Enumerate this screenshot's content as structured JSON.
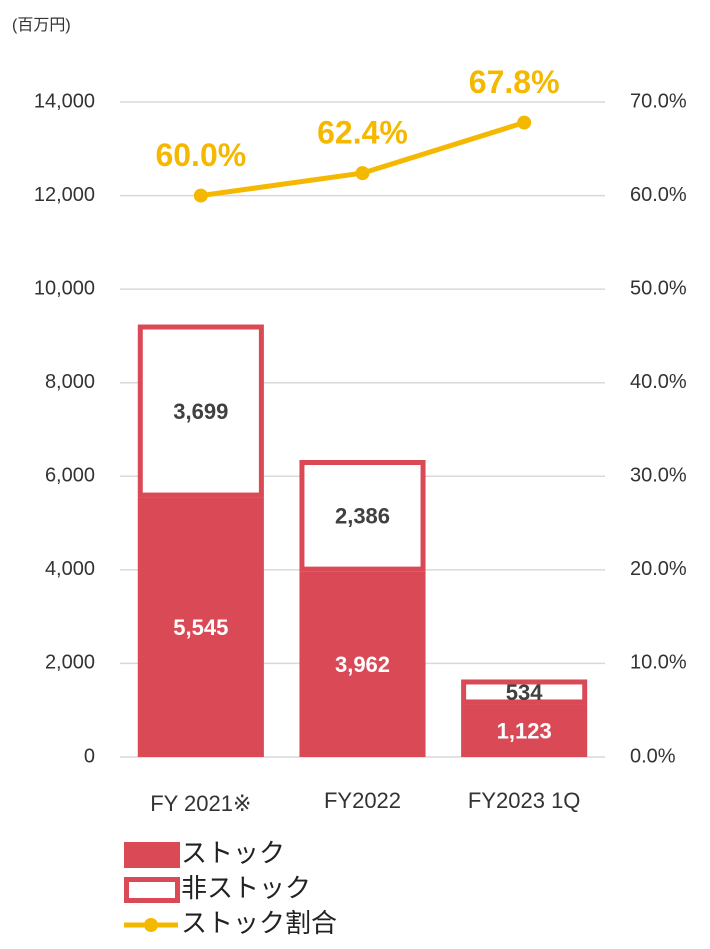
{
  "chart_data": {
    "type": "bar",
    "stacked": true,
    "unit_label": "(百万円)",
    "categories": [
      "FY 2021※",
      "FY2022",
      "FY2023 1Q"
    ],
    "series": [
      {
        "name": "ストック",
        "color": "#d94a56",
        "values": [
          5545,
          3962,
          1123
        ],
        "value_labels": [
          "5,545",
          "3,962",
          "1,123"
        ]
      },
      {
        "name": "非ストック",
        "color": "#d94a56",
        "fill": "#ffffff",
        "values": [
          3699,
          2386,
          534
        ],
        "value_labels": [
          "3,699",
          "2,386",
          "534"
        ]
      },
      {
        "name": "ストック割合",
        "type": "line",
        "axis": "y2",
        "color": "#f5b800",
        "values": [
          60.0,
          62.4,
          67.8
        ],
        "value_labels": [
          "60.0%",
          "62.4%",
          "67.8%"
        ]
      }
    ],
    "ylim": [
      0,
      14000
    ],
    "yticks": [
      0,
      {
        "value": 2000,
        "label": "2,000"
      },
      {
        "value": 4000,
        "label": "4,000"
      },
      {
        "value": 6000,
        "label": "6,000"
      },
      {
        "value": 8000,
        "label": "8,000"
      },
      {
        "value": 10000,
        "label": "10,000"
      },
      {
        "value": 12000,
        "label": "12,000"
      },
      {
        "value": 14000,
        "label": "14,000"
      }
    ],
    "y2lim": [
      0,
      70
    ],
    "y2ticks": [
      {
        "value": 0,
        "label": "0.0%"
      },
      {
        "value": 10,
        "label": "10.0%"
      },
      {
        "value": 20,
        "label": "20.0%"
      },
      {
        "value": 30,
        "label": "30.0%"
      },
      {
        "value": 40,
        "label": "40.0%"
      },
      {
        "value": 50,
        "label": "50.0%"
      },
      {
        "value": 60,
        "label": "60.0%"
      },
      {
        "value": 70,
        "label": "70.0%"
      }
    ],
    "grid": true,
    "legend": "bottom"
  }
}
